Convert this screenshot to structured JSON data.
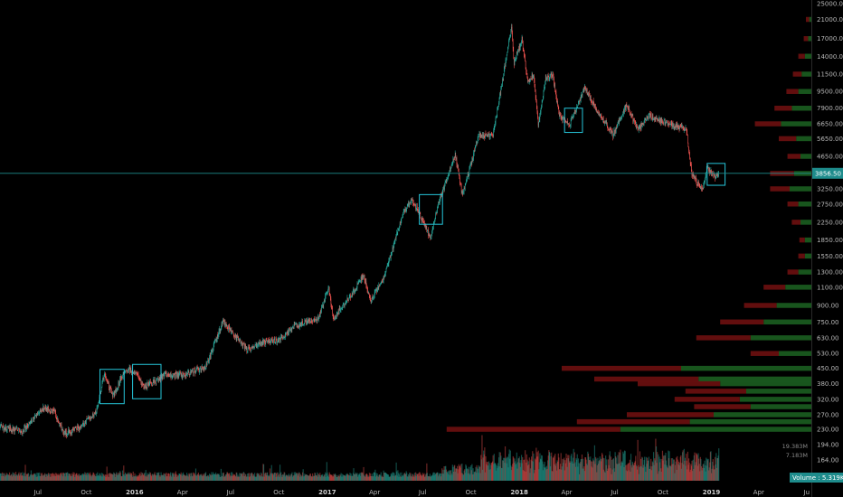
{
  "chart_data": {
    "type": "candlestick",
    "y_scale": "log",
    "ylim": [
      150,
      25000
    ],
    "xlim": [
      "2015-04-20",
      "2019-07-10"
    ],
    "y_ticks": [
      "25000.00",
      "21000.00",
      "17000.00",
      "14000.00",
      "11500.00",
      "9500.00",
      "7900.00",
      "6650.00",
      "5650.00",
      "4650.00",
      "3250.00",
      "2750.00",
      "2250.00",
      "1850.00",
      "1550.00",
      "1300.00",
      "1100.00",
      "900.00",
      "750.00",
      "630.00",
      "530.00",
      "450.00",
      "380.00",
      "320.00",
      "270.00",
      "230.00",
      "194.00",
      "164.00"
    ],
    "x_ticks": [
      {
        "label": "Jul",
        "date": "2015-07-01",
        "bold": false
      },
      {
        "label": "Oct",
        "date": "2015-10-01",
        "bold": false
      },
      {
        "label": "2016",
        "date": "2016-01-01",
        "bold": true
      },
      {
        "label": "Apr",
        "date": "2016-04-01",
        "bold": false
      },
      {
        "label": "Jul",
        "date": "2016-07-01",
        "bold": false
      },
      {
        "label": "Oct",
        "date": "2016-10-01",
        "bold": false
      },
      {
        "label": "2017",
        "date": "2017-01-01",
        "bold": true
      },
      {
        "label": "Apr",
        "date": "2017-04-01",
        "bold": false
      },
      {
        "label": "Jul",
        "date": "2017-07-01",
        "bold": false
      },
      {
        "label": "Oct",
        "date": "2017-10-01",
        "bold": false
      },
      {
        "label": "2018",
        "date": "2018-01-01",
        "bold": true
      },
      {
        "label": "Apr",
        "date": "2018-04-01",
        "bold": false
      },
      {
        "label": "Jul",
        "date": "2018-07-01",
        "bold": false
      },
      {
        "label": "Oct",
        "date": "2018-10-01",
        "bold": false
      },
      {
        "label": "2019",
        "date": "2019-01-01",
        "bold": true
      },
      {
        "label": "Apr",
        "date": "2019-04-01",
        "bold": false
      },
      {
        "label": "Ju",
        "date": "2019-07-01",
        "bold": false
      }
    ],
    "price_path": [
      {
        "date": "2015-04-20",
        "close": 235
      },
      {
        "date": "2015-06-01",
        "close": 225
      },
      {
        "date": "2015-07-10",
        "close": 290
      },
      {
        "date": "2015-08-01",
        "close": 280
      },
      {
        "date": "2015-08-20",
        "close": 220
      },
      {
        "date": "2015-09-20",
        "close": 235
      },
      {
        "date": "2015-10-20",
        "close": 280
      },
      {
        "date": "2015-11-04",
        "close": 420
      },
      {
        "date": "2015-11-20",
        "close": 330
      },
      {
        "date": "2015-12-15",
        "close": 450
      },
      {
        "date": "2016-01-05",
        "close": 430
      },
      {
        "date": "2016-01-16",
        "close": 370
      },
      {
        "date": "2016-02-01",
        "close": 380
      },
      {
        "date": "2016-03-01",
        "close": 420
      },
      {
        "date": "2016-04-01",
        "close": 420
      },
      {
        "date": "2016-05-15",
        "close": 455
      },
      {
        "date": "2016-06-17",
        "close": 760
      },
      {
        "date": "2016-07-01",
        "close": 680
      },
      {
        "date": "2016-08-02",
        "close": 550
      },
      {
        "date": "2016-09-01",
        "close": 600
      },
      {
        "date": "2016-10-01",
        "close": 615
      },
      {
        "date": "2016-11-01",
        "close": 720
      },
      {
        "date": "2016-12-15",
        "close": 780
      },
      {
        "date": "2017-01-04",
        "close": 1100
      },
      {
        "date": "2017-01-12",
        "close": 780
      },
      {
        "date": "2017-02-15",
        "close": 1000
      },
      {
        "date": "2017-03-10",
        "close": 1250
      },
      {
        "date": "2017-03-25",
        "close": 950
      },
      {
        "date": "2017-04-20",
        "close": 1250
      },
      {
        "date": "2017-05-25",
        "close": 2500
      },
      {
        "date": "2017-06-12",
        "close": 2900
      },
      {
        "date": "2017-07-16",
        "close": 1900
      },
      {
        "date": "2017-08-01",
        "close": 2800
      },
      {
        "date": "2017-09-01",
        "close": 4800
      },
      {
        "date": "2017-09-15",
        "close": 3000
      },
      {
        "date": "2017-10-15",
        "close": 5800
      },
      {
        "date": "2017-11-12",
        "close": 5900
      },
      {
        "date": "2017-11-28",
        "close": 10000
      },
      {
        "date": "2017-12-17",
        "close": 19500
      },
      {
        "date": "2017-12-22",
        "close": 13000
      },
      {
        "date": "2018-01-06",
        "close": 17000
      },
      {
        "date": "2018-01-17",
        "close": 10500
      },
      {
        "date": "2018-01-28",
        "close": 11500
      },
      {
        "date": "2018-02-06",
        "close": 6500
      },
      {
        "date": "2018-02-20",
        "close": 11000
      },
      {
        "date": "2018-03-05",
        "close": 11400
      },
      {
        "date": "2018-03-18",
        "close": 7300
      },
      {
        "date": "2018-04-06",
        "close": 6600
      },
      {
        "date": "2018-05-05",
        "close": 9800
      },
      {
        "date": "2018-06-01",
        "close": 7500
      },
      {
        "date": "2018-06-28",
        "close": 5900
      },
      {
        "date": "2018-07-24",
        "close": 8300
      },
      {
        "date": "2018-08-14",
        "close": 6200
      },
      {
        "date": "2018-09-04",
        "close": 7300
      },
      {
        "date": "2018-10-15",
        "close": 6600
      },
      {
        "date": "2018-11-14",
        "close": 6300
      },
      {
        "date": "2018-11-25",
        "close": 3800
      },
      {
        "date": "2018-12-15",
        "close": 3200
      },
      {
        "date": "2018-12-24",
        "close": 4100
      },
      {
        "date": "2019-01-10",
        "close": 3700
      },
      {
        "date": "2019-01-15",
        "close": 3856.5
      }
    ],
    "current_price": {
      "label": "3856.50",
      "value": 3856.5
    },
    "highlight_boxes": [
      {
        "start": "2015-10-27",
        "end": "2015-12-12",
        "low": 305,
        "high": 445
      },
      {
        "start": "2015-12-28",
        "end": "2016-02-20",
        "low": 322,
        "high": 470
      },
      {
        "start": "2017-06-25",
        "end": "2017-08-08",
        "low": 2200,
        "high": 3050
      },
      {
        "start": "2018-03-28",
        "end": "2018-05-01",
        "low": 6050,
        "high": 7900
      },
      {
        "start": "2018-12-24",
        "end": "2019-01-27",
        "low": 3380,
        "high": 4300
      }
    ],
    "volume_profile": [
      {
        "price": 21000,
        "buy": 0.01,
        "sell": 0.015
      },
      {
        "price": 17000,
        "buy": 0.015,
        "sell": 0.02
      },
      {
        "price": 14000,
        "buy": 0.03,
        "sell": 0.03
      },
      {
        "price": 11500,
        "buy": 0.045,
        "sell": 0.04
      },
      {
        "price": 9500,
        "buy": 0.06,
        "sell": 0.055
      },
      {
        "price": 7900,
        "buy": 0.09,
        "sell": 0.08
      },
      {
        "price": 6650,
        "buy": 0.14,
        "sell": 0.12
      },
      {
        "price": 5650,
        "buy": 0.07,
        "sell": 0.08
      },
      {
        "price": 4650,
        "buy": 0.05,
        "sell": 0.06
      },
      {
        "price": 3850,
        "buy": 0.08,
        "sell": 0.11
      },
      {
        "price": 3250,
        "buy": 0.1,
        "sell": 0.09
      },
      {
        "price": 2750,
        "buy": 0.06,
        "sell": 0.05
      },
      {
        "price": 2250,
        "buy": 0.05,
        "sell": 0.04
      },
      {
        "price": 1850,
        "buy": 0.03,
        "sell": 0.025
      },
      {
        "price": 1550,
        "buy": 0.03,
        "sell": 0.03
      },
      {
        "price": 1300,
        "buy": 0.06,
        "sell": 0.05
      },
      {
        "price": 1100,
        "buy": 0.12,
        "sell": 0.1
      },
      {
        "price": 900,
        "buy": 0.16,
        "sell": 0.15
      },
      {
        "price": 750,
        "buy": 0.22,
        "sell": 0.2
      },
      {
        "price": 630,
        "buy": 0.28,
        "sell": 0.25
      },
      {
        "price": 530,
        "buy": 0.15,
        "sell": 0.13
      },
      {
        "price": 450,
        "buy": 0.6,
        "sell": 0.55
      },
      {
        "price": 400,
        "buy": 0.52,
        "sell": 0.48
      },
      {
        "price": 380,
        "buy": 0.42,
        "sell": 0.38
      },
      {
        "price": 350,
        "buy": 0.3,
        "sell": 0.28
      },
      {
        "price": 320,
        "buy": 0.33,
        "sell": 0.3
      },
      {
        "price": 295,
        "buy": 0.28,
        "sell": 0.26
      },
      {
        "price": 270,
        "buy": 0.45,
        "sell": 0.4
      },
      {
        "price": 250,
        "buy": 0.56,
        "sell": 0.52
      },
      {
        "price": 230,
        "buy": 0.88,
        "sell": 0.8
      }
    ],
    "volume_profile_labels": [
      "19.383M",
      "7.183M"
    ],
    "volume_badge": {
      "label": "Volume",
      "value": "5.319K"
    },
    "grid": false,
    "legend": "none",
    "colors": {
      "background": "#000000",
      "up": "#26a69a",
      "down": "#ef5350",
      "vp_buy": "#1b5e20",
      "vp_sell": "#6d1010",
      "box": "#26c6da",
      "price_line": "#1e8c8c",
      "badge": "#1e8c8c",
      "axis_text": "#b8b8b8"
    }
  }
}
